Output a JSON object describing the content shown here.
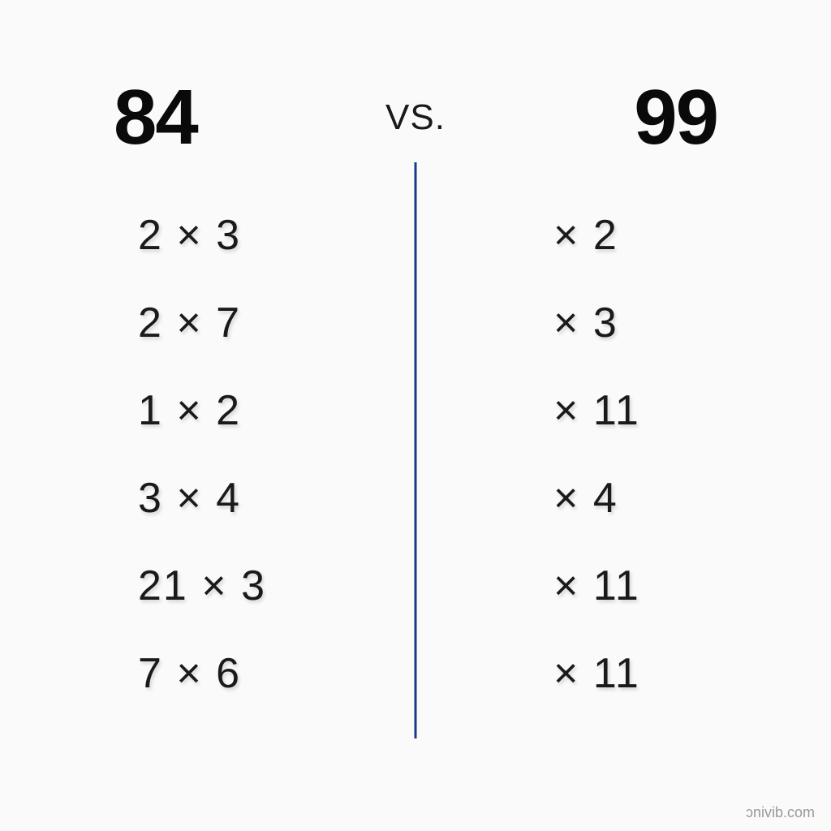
{
  "type": "infographic",
  "background_color": "#fafafa",
  "text_color": "#1a1a1a",
  "divider_color": "#1a3a8a",
  "shadow_color": "rgba(0,0,0,0.15)",
  "header": {
    "left_number": "84",
    "vs_label": "VS.",
    "right_number": "99",
    "number_fontsize": 96,
    "number_fontweight": 900,
    "vs_fontsize": 44
  },
  "left_column": {
    "items": [
      "2 × 3",
      "2 × 7",
      "1 × 2",
      "3 × 4",
      "21 × 3",
      "7 × 6"
    ]
  },
  "right_column": {
    "items": [
      "× 2",
      "× 3",
      "× 11",
      "× 4",
      "× 11",
      "× 11"
    ]
  },
  "expression_fontsize": 52,
  "watermark": "ɔnivib.com"
}
